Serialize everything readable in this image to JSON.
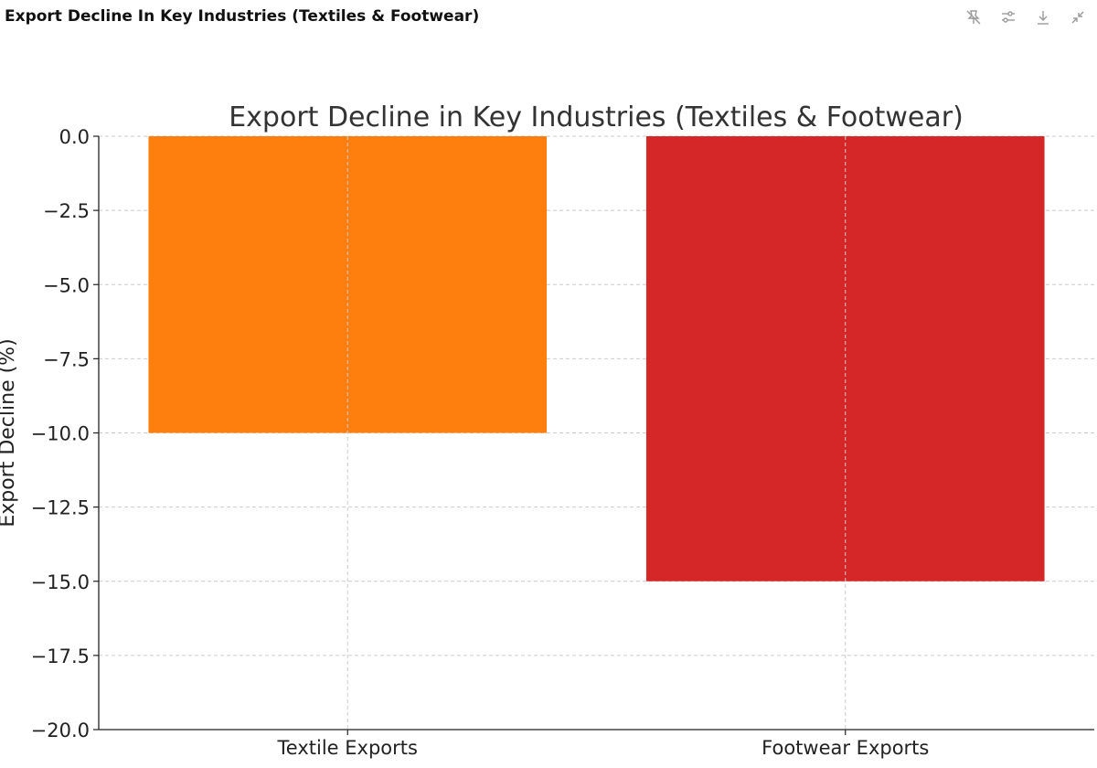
{
  "header": {
    "title": "Export Decline In Key Industries (Textiles & Footwear)"
  },
  "toolbar": {
    "icons": [
      "pin-off-icon",
      "sliders-icon",
      "download-icon",
      "collapse-icon"
    ]
  },
  "colors": {
    "textile": "#ff7f0e",
    "footwear": "#d62728",
    "grid": "#cccccc",
    "axis": "#222222"
  },
  "chart_data": {
    "type": "bar",
    "title": "Export Decline in Key Industries (Textiles & Footwear)",
    "xlabel": "",
    "ylabel": "Export Decline (%)",
    "categories": [
      "Textile Exports",
      "Footwear Exports"
    ],
    "values": [
      -10,
      -15
    ],
    "ylim": [
      -20,
      0
    ],
    "yticks": [
      0,
      -2.5,
      -5,
      -7.5,
      -10,
      -12.5,
      -15,
      -17.5,
      -20
    ],
    "ytick_labels": [
      "0.0",
      "−2.5",
      "−5.0",
      "−7.5",
      "−10.0",
      "−12.5",
      "−15.0",
      "−17.5",
      "−20.0"
    ],
    "grid": true
  }
}
